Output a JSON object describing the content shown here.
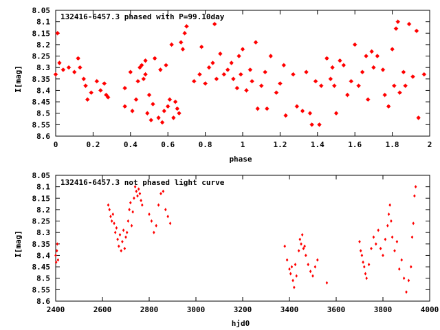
{
  "chart_data": [
    {
      "type": "scatter",
      "title": "132416-6457.3 phased with P=99.10day",
      "xlabel": "phase",
      "ylabel": "I[mag]",
      "xlim": [
        0,
        2
      ],
      "ylim": [
        8.6,
        8.05
      ],
      "y_inverted": true,
      "xticks": [
        "0",
        "0.2",
        "0.4",
        "0.6",
        "0.8",
        "1",
        "1.2",
        "1.4",
        "1.6",
        "1.8",
        "2"
      ],
      "yticks": [
        "8.05",
        "8.1",
        "8.15",
        "8.2",
        "8.25",
        "8.3",
        "8.35",
        "8.4",
        "8.45",
        "8.5",
        "8.55",
        "8.6"
      ],
      "marker_color": "#ff0000",
      "marker": "star",
      "series": [
        {
          "x": [
            0.0,
            0.01,
            0.02,
            0.04,
            0.07,
            0.1,
            0.12,
            0.13,
            0.15,
            0.16,
            0.17,
            0.19,
            0.22,
            0.24,
            0.26,
            0.27,
            0.28,
            0.37,
            0.37,
            0.4,
            0.41,
            0.43,
            0.44,
            0.45,
            0.46,
            0.47,
            0.48,
            0.48,
            0.49,
            0.5,
            0.51,
            0.52,
            0.53,
            0.55,
            0.56,
            0.57,
            0.58,
            0.59,
            0.6,
            0.61,
            0.62,
            0.63,
            0.64,
            0.65,
            0.66,
            0.67,
            0.68,
            0.69,
            0.7,
            0.74,
            0.77,
            0.78,
            0.8,
            0.82,
            0.84,
            0.85,
            0.86,
            0.88,
            0.9,
            0.92,
            0.94,
            0.95,
            0.97,
            0.98,
            0.99,
            1.0,
            1.02,
            1.04,
            1.05,
            1.07,
            1.08,
            1.1,
            1.12,
            1.13,
            1.15,
            1.18,
            1.2,
            1.22,
            1.23,
            1.27,
            1.29,
            1.32,
            1.34,
            1.36,
            1.37,
            1.39,
            1.41,
            1.42,
            1.45,
            1.47,
            1.48,
            1.49,
            1.5,
            1.52,
            1.54,
            1.56,
            1.58,
            1.6,
            1.62,
            1.64,
            1.66,
            1.67,
            1.69,
            1.7,
            1.72,
            1.75,
            1.76,
            1.78,
            1.8,
            1.81,
            1.82,
            1.83,
            1.84,
            1.86,
            1.87,
            1.89,
            1.91,
            1.93,
            1.94,
            1.97
          ],
          "y": [
            8.33,
            8.15,
            8.28,
            8.31,
            8.3,
            8.32,
            8.26,
            8.3,
            8.35,
            8.38,
            8.44,
            8.41,
            8.36,
            8.4,
            8.37,
            8.42,
            8.43,
            8.39,
            8.47,
            8.32,
            8.49,
            8.44,
            8.36,
            8.3,
            8.29,
            8.35,
            8.33,
            8.27,
            8.5,
            8.42,
            8.53,
            8.46,
            8.26,
            8.52,
            8.31,
            8.54,
            8.49,
            8.29,
            8.47,
            8.44,
            8.2,
            8.52,
            8.45,
            8.48,
            8.5,
            8.19,
            8.22,
            8.15,
            8.12,
            8.36,
            8.33,
            8.21,
            8.37,
            8.3,
            8.28,
            8.11,
            8.35,
            8.24,
            8.33,
            8.31,
            8.28,
            8.35,
            8.39,
            8.25,
            8.33,
            8.22,
            8.4,
            8.31,
            8.36,
            8.19,
            8.48,
            8.38,
            8.32,
            8.48,
            8.25,
            8.41,
            8.37,
            8.29,
            8.51,
            8.33,
            8.47,
            8.49,
            8.32,
            8.5,
            8.55,
            8.36,
            8.55,
            8.38,
            8.26,
            8.35,
            8.3,
            8.38,
            8.5,
            8.27,
            8.29,
            8.42,
            8.36,
            8.2,
            8.38,
            8.32,
            8.25,
            8.44,
            8.23,
            8.3,
            8.25,
            8.31,
            8.42,
            8.47,
            8.22,
            8.38,
            8.13,
            8.1,
            8.41,
            8.32,
            8.38,
            8.11,
            8.34,
            8.14,
            8.52,
            8.33
          ]
        }
      ]
    },
    {
      "type": "scatter",
      "title": "132416-6457.3 not phased light curve",
      "xlabel": "hjd0",
      "ylabel": "I[mag]",
      "xlim": [
        2400,
        4000
      ],
      "ylim": [
        8.6,
        8.05
      ],
      "y_inverted": true,
      "xticks": [
        "2400",
        "2600",
        "2800",
        "3000",
        "3200",
        "3400",
        "3600",
        "3800",
        "4000"
      ],
      "yticks": [
        "8.05",
        "8.1",
        "8.15",
        "8.2",
        "8.25",
        "8.3",
        "8.35",
        "8.4",
        "8.45",
        "8.5",
        "8.55",
        "8.6"
      ],
      "marker_color": "#ff0000",
      "marker": "diamond",
      "series": [
        {
          "x": [
            2400,
            2402,
            2405,
            2407,
            2410,
            2625,
            2630,
            2635,
            2640,
            2645,
            2650,
            2655,
            2660,
            2665,
            2670,
            2675,
            2680,
            2685,
            2690,
            2695,
            2700,
            2705,
            2710,
            2715,
            2720,
            2725,
            2730,
            2735,
            2740,
            2745,
            2750,
            2755,
            2760,
            2765,
            2770,
            2800,
            2810,
            2820,
            2830,
            2840,
            2850,
            2860,
            2870,
            2880,
            2890,
            3380,
            3390,
            3400,
            3405,
            3410,
            3415,
            3420,
            3425,
            3430,
            3440,
            3445,
            3450,
            3455,
            3460,
            3465,
            3470,
            3480,
            3490,
            3500,
            3510,
            3520,
            3560,
            3700,
            3705,
            3710,
            3715,
            3720,
            3725,
            3730,
            3740,
            3750,
            3760,
            3770,
            3780,
            3790,
            3800,
            3810,
            3820,
            3825,
            3830,
            3835,
            3840,
            3850,
            3860,
            3870,
            3880,
            3890,
            3900,
            3910,
            3920,
            3925,
            3930,
            3935,
            3940
          ],
          "y": [
            8.4,
            8.43,
            8.38,
            8.35,
            8.42,
            8.18,
            8.2,
            8.23,
            8.25,
            8.22,
            8.26,
            8.3,
            8.28,
            8.33,
            8.36,
            8.31,
            8.38,
            8.34,
            8.29,
            8.37,
            8.32,
            8.3,
            8.25,
            8.2,
            8.17,
            8.27,
            8.21,
            8.15,
            8.1,
            8.12,
            8.14,
            8.11,
            8.13,
            8.16,
            8.18,
            8.22,
            8.25,
            8.3,
            8.27,
            8.18,
            8.13,
            8.12,
            8.2,
            8.23,
            8.26,
            8.36,
            8.42,
            8.46,
            8.48,
            8.45,
            8.51,
            8.54,
            8.44,
            8.49,
            8.38,
            8.33,
            8.35,
            8.31,
            8.37,
            8.36,
            8.4,
            8.44,
            8.47,
            8.49,
            8.45,
            8.42,
            8.52,
            8.34,
            8.38,
            8.4,
            8.43,
            8.45,
            8.48,
            8.5,
            8.44,
            8.37,
            8.32,
            8.35,
            8.29,
            8.37,
            8.4,
            8.33,
            8.27,
            8.22,
            8.18,
            8.25,
            8.32,
            8.38,
            8.34,
            8.46,
            8.42,
            8.5,
            8.56,
            8.51,
            8.45,
            8.32,
            8.26,
            8.14,
            8.1
          ]
        }
      ]
    }
  ]
}
